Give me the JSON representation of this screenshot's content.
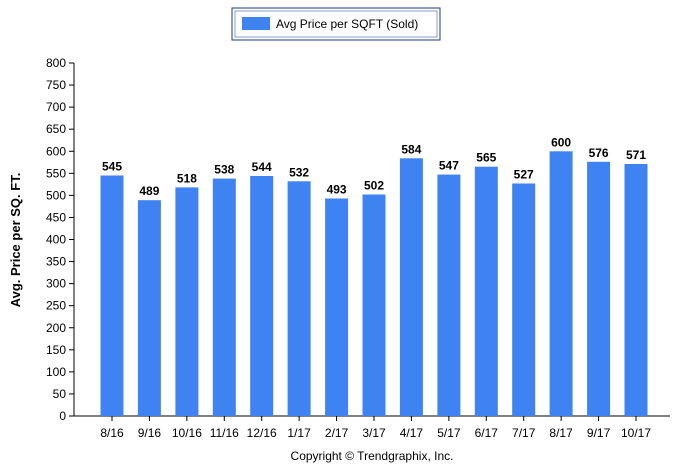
{
  "chart_data": {
    "type": "bar",
    "categories": [
      "8/16",
      "9/16",
      "10/16",
      "11/16",
      "12/16",
      "1/17",
      "2/17",
      "3/17",
      "4/17",
      "5/17",
      "6/17",
      "7/17",
      "8/17",
      "9/17",
      "10/17"
    ],
    "series": [
      {
        "name": "Avg Price per SQFT (Sold)",
        "values": [
          545,
          489,
          518,
          538,
          544,
          532,
          493,
          502,
          584,
          547,
          565,
          527,
          600,
          576,
          571
        ],
        "color": "#3f82f2"
      }
    ],
    "ylabel": "Avg. Price per SQ. FT.",
    "ylim": [
      0,
      800
    ],
    "yticks": [
      0,
      50,
      100,
      150,
      200,
      250,
      300,
      350,
      400,
      450,
      500,
      550,
      600,
      650,
      700,
      750,
      800
    ],
    "legend_position": "top-center",
    "grid": false
  },
  "footer": {
    "copyright": "Copyright © Trendgraphix, Inc."
  }
}
